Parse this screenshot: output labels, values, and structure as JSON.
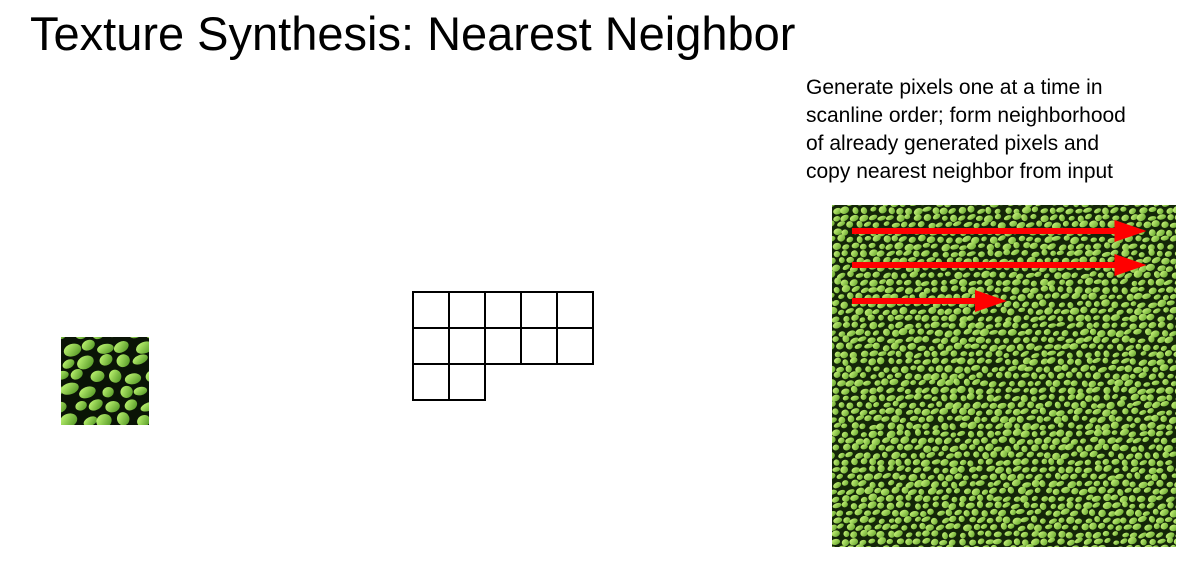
{
  "slide": {
    "title": "Texture Synthesis: Nearest Neighbor",
    "caption_lines": [
      "Generate pixels one at a time in",
      "scanline order; form neighborhood",
      "of already generated pixels and",
      "copy nearest neighbor from input"
    ]
  },
  "colors": {
    "texture_dark": "#0a1406",
    "texture_cell": "#8fd13a",
    "texture_highlight": "#e6ff78",
    "arrow": "#ff0000",
    "grid_line": "#000000",
    "current_pixel": "#f4c6c6"
  },
  "grid": {
    "rows": [
      5,
      5,
      2
    ],
    "current_pixel": {
      "row": 3,
      "col": 3
    }
  },
  "arrows": [
    {
      "label": "scanline-1",
      "length_fraction": 0.95
    },
    {
      "label": "scanline-2",
      "length_fraction": 0.95
    },
    {
      "label": "scanline-3",
      "length_fraction": 0.5
    }
  ]
}
